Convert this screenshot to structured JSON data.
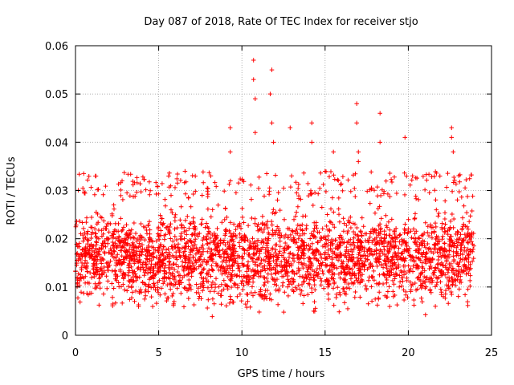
{
  "chart_data": {
    "type": "scatter",
    "title": "Day 087 of 2018, Rate Of TEC Index for receiver stjo",
    "xlabel": "GPS time / hours",
    "ylabel": "ROTI / TECUs",
    "xlim": [
      0,
      25
    ],
    "ylim": [
      0,
      0.06
    ],
    "x_ticks": [
      "0",
      "5",
      "10",
      "15",
      "20",
      "25"
    ],
    "y_ticks": [
      "0",
      "0.01",
      "0.02",
      "0.03",
      "0.04",
      "0.05",
      "0.06"
    ],
    "grid": true,
    "marker": "+",
    "series_color": "#ff0000",
    "data_range_hours": [
      0,
      23.95
    ],
    "dense_band": {
      "low": 0.003,
      "high": 0.028
    },
    "notable_peaks": [
      {
        "x": 9.3,
        "y": 0.043
      },
      {
        "x": 9.3,
        "y": 0.038
      },
      {
        "x": 10.7,
        "y": 0.057
      },
      {
        "x": 10.7,
        "y": 0.053
      },
      {
        "x": 10.8,
        "y": 0.049
      },
      {
        "x": 10.8,
        "y": 0.042
      },
      {
        "x": 11.8,
        "y": 0.055
      },
      {
        "x": 11.7,
        "y": 0.05
      },
      {
        "x": 11.8,
        "y": 0.044
      },
      {
        "x": 11.9,
        "y": 0.04
      },
      {
        "x": 12.9,
        "y": 0.043
      },
      {
        "x": 14.2,
        "y": 0.044
      },
      {
        "x": 14.2,
        "y": 0.04
      },
      {
        "x": 15.5,
        "y": 0.038
      },
      {
        "x": 16.9,
        "y": 0.048
      },
      {
        "x": 16.9,
        "y": 0.044
      },
      {
        "x": 17.0,
        "y": 0.038
      },
      {
        "x": 17.0,
        "y": 0.036
      },
      {
        "x": 18.3,
        "y": 0.046
      },
      {
        "x": 18.3,
        "y": 0.04
      },
      {
        "x": 19.8,
        "y": 0.041
      },
      {
        "x": 22.6,
        "y": 0.043
      },
      {
        "x": 22.6,
        "y": 0.041
      },
      {
        "x": 22.7,
        "y": 0.038
      },
      {
        "x": 21.9,
        "y": 0.033
      },
      {
        "x": 1.2,
        "y": 0.033
      },
      {
        "x": 2.8,
        "y": 0.032
      },
      {
        "x": 5.6,
        "y": 0.033
      },
      {
        "x": 7.2,
        "y": 0.033
      }
    ]
  }
}
